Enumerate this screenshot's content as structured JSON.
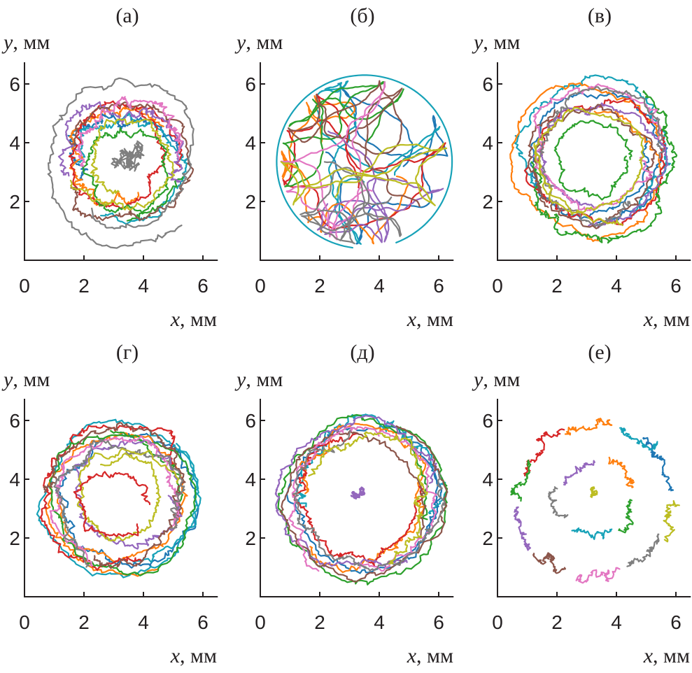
{
  "figure": {
    "x_axis_var": "x",
    "y_axis_var": "y",
    "unit": ", мм"
  },
  "colors": [
    "#1f77b4",
    "#17a2b8",
    "#ff7f0e",
    "#d62728",
    "#2ca02c",
    "#9467bd",
    "#8c564b",
    "#e377c2",
    "#7f7f7f",
    "#bcbd22"
  ],
  "chart_data": [
    {
      "type": "scatter",
      "panel": "(а)",
      "xlabel": "x, мм",
      "ylabel": "y, мм",
      "xlim": [
        0,
        6.5
      ],
      "ylim": [
        0,
        6.5
      ],
      "xticks": [
        "0",
        "2",
        "4",
        "6"
      ],
      "yticks": [
        "2",
        "4",
        "6"
      ],
      "series": [
        {
          "kind": "ring",
          "center": [
            3.3,
            3.3
          ],
          "r_outer": 2.9,
          "r_inner": 0.9,
          "paths": 10,
          "color_index": "all"
        },
        {
          "kind": "cluster",
          "center": [
            3.3,
            3.3
          ],
          "radius": 0.9,
          "color": "#7f7f7f"
        }
      ]
    },
    {
      "type": "scatter",
      "panel": "(б)",
      "xlabel": "x, мм",
      "ylabel": "y, мм",
      "xlim": [
        0,
        6.5
      ],
      "ylim": [
        0,
        6.5
      ],
      "xticks": [
        "0",
        "2",
        "4",
        "6"
      ],
      "yticks": [
        "2",
        "4",
        "6"
      ],
      "series": [
        {
          "kind": "uniform_disk",
          "center": [
            3.5,
            3.35
          ],
          "radius": 2.8,
          "paths": 10,
          "color_index": "all"
        },
        {
          "kind": "boundary_loop",
          "center": [
            3.5,
            3.35
          ],
          "radius": 2.95,
          "color": "#17a2b8"
        }
      ]
    },
    {
      "type": "scatter",
      "panel": "(в)",
      "xlabel": "x, мм",
      "ylabel": "y, мм",
      "xlim": [
        0,
        6.5
      ],
      "ylim": [
        0,
        6.5
      ],
      "xticks": [
        "0",
        "2",
        "4",
        "6"
      ],
      "yticks": [
        "2",
        "4",
        "6"
      ],
      "series": [
        {
          "kind": "ring",
          "center": [
            3.3,
            3.4
          ],
          "r_outer": 2.9,
          "r_inner": 1.5,
          "paths": 10,
          "color_index": "all"
        },
        {
          "kind": "inner_loop",
          "center": [
            3.3,
            3.4
          ],
          "radius": 1.3,
          "color": "#2ca02c"
        }
      ]
    },
    {
      "type": "scatter",
      "panel": "(г)",
      "xlabel": "x, мм",
      "ylabel": "y, мм",
      "xlim": [
        0,
        6.5
      ],
      "ylim": [
        0,
        6.5
      ],
      "xticks": [
        "0",
        "2",
        "4",
        "6"
      ],
      "yticks": [
        "2",
        "4",
        "6"
      ],
      "series": [
        {
          "kind": "ring",
          "center": [
            3.25,
            3.3
          ],
          "r_outer": 2.9,
          "r_inner": 1.2,
          "paths": 10,
          "color_index": "all"
        },
        {
          "kind": "inner_loop",
          "center": [
            3.0,
            3.1
          ],
          "radius": 1.3,
          "color": "#d62728"
        }
      ]
    },
    {
      "type": "scatter",
      "panel": "(д)",
      "xlabel": "x, мм",
      "ylabel": "y, мм",
      "xlim": [
        0,
        6.5
      ],
      "ylim": [
        0,
        6.5
      ],
      "xticks": [
        "0",
        "2",
        "4",
        "6"
      ],
      "yticks": [
        "2",
        "4",
        "6"
      ],
      "series": [
        {
          "kind": "ring",
          "center": [
            3.4,
            3.3
          ],
          "r_outer": 2.9,
          "r_inner": 1.8,
          "paths": 10,
          "color_index": "all"
        },
        {
          "kind": "cluster",
          "center": [
            3.3,
            3.5
          ],
          "radius": 0.25,
          "color": "#9467bd"
        }
      ]
    },
    {
      "type": "scatter",
      "panel": "(е)",
      "xlabel": "x, мм",
      "ylabel": "y, мм",
      "xlim": [
        0,
        6.5
      ],
      "ylim": [
        0,
        6.5
      ],
      "xticks": [
        "0",
        "2",
        "4",
        "6"
      ],
      "yticks": [
        "2",
        "4",
        "6"
      ],
      "series": [
        {
          "kind": "segmented_ring",
          "center": [
            3.3,
            3.3
          ],
          "radius": 2.6,
          "paths": 10,
          "color_index": "all"
        },
        {
          "kind": "inner_arcs",
          "center": [
            3.3,
            3.3
          ],
          "radius": 1.4,
          "paths": 5,
          "color_index": "all"
        },
        {
          "kind": "cluster",
          "center": [
            3.25,
            3.55
          ],
          "radius": 0.18,
          "color": "#bcbd22"
        }
      ]
    }
  ]
}
